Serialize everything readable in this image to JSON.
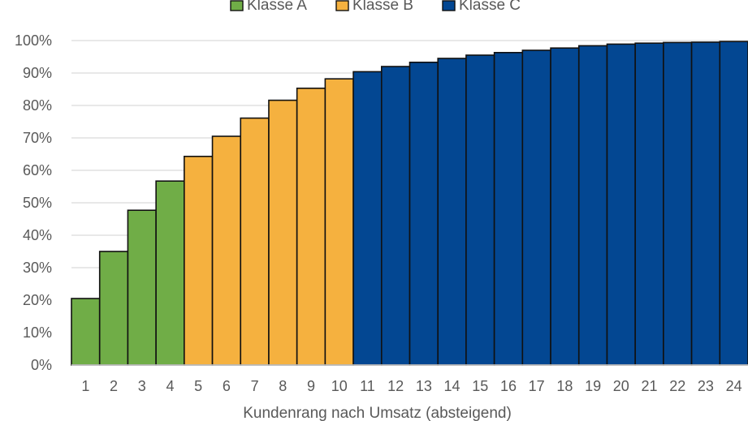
{
  "chart_data": {
    "type": "bar",
    "title": "",
    "xlabel": "Kundenrang nach Umsatz (absteigend)",
    "ylabel": "",
    "ylim": [
      0,
      1
    ],
    "yticks": [
      "0%",
      "10%",
      "20%",
      "30%",
      "40%",
      "50%",
      "60%",
      "70%",
      "80%",
      "90%",
      "100%"
    ],
    "grid": true,
    "legend_position": "top",
    "categories": [
      "1",
      "2",
      "3",
      "4",
      "5",
      "6",
      "7",
      "8",
      "9",
      "10",
      "11",
      "12",
      "13",
      "14",
      "15",
      "16",
      "17",
      "18",
      "19",
      "20",
      "21",
      "22",
      "23",
      "24"
    ],
    "values": [
      0.205,
      0.35,
      0.477,
      0.567,
      0.643,
      0.705,
      0.761,
      0.816,
      0.853,
      0.882,
      0.904,
      0.92,
      0.933,
      0.945,
      0.955,
      0.963,
      0.97,
      0.977,
      0.984,
      0.989,
      0.992,
      0.994,
      0.995,
      0.997
    ],
    "classes": [
      "A",
      "A",
      "A",
      "A",
      "B",
      "B",
      "B",
      "B",
      "B",
      "B",
      "C",
      "C",
      "C",
      "C",
      "C",
      "C",
      "C",
      "C",
      "C",
      "C",
      "C",
      "C",
      "C",
      "C"
    ],
    "series": [
      {
        "name": "Klasse A",
        "key": "A",
        "color": "#70AD47"
      },
      {
        "name": "Klasse B",
        "key": "B",
        "color": "#F5B13F"
      },
      {
        "name": "Klasse C",
        "key": "C",
        "color": "#034792"
      }
    ]
  }
}
